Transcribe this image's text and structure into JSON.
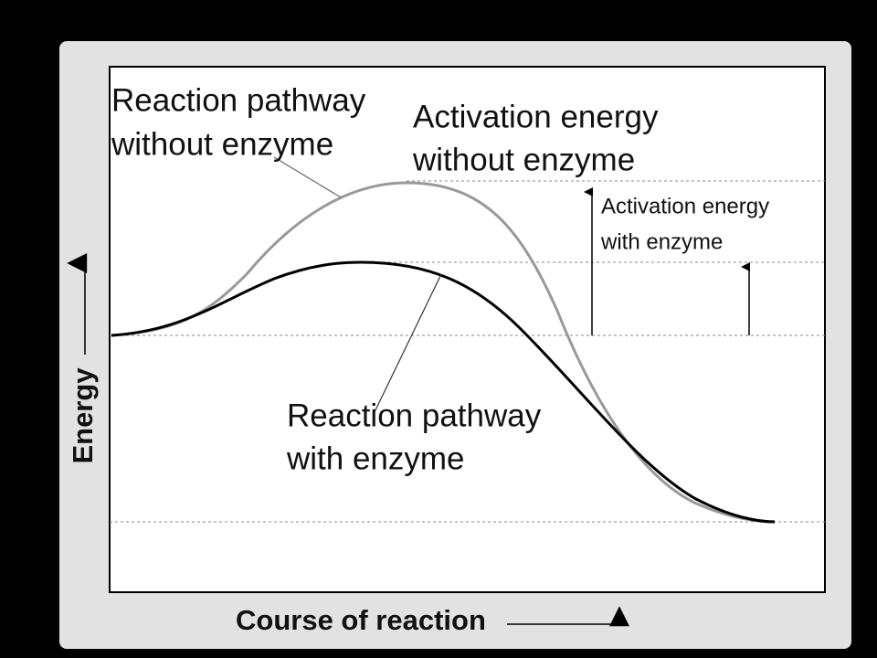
{
  "labels": {
    "pathway_without": [
      "Reaction pathway",
      "without enzyme"
    ],
    "activation_without": [
      "Activation energy",
      "without enzyme"
    ],
    "activation_with": [
      "Activation energy",
      "with enzyme"
    ],
    "pathway_with": [
      "Reaction pathway",
      "with enzyme"
    ]
  },
  "axes": {
    "y_label": "Energy",
    "x_label": "Course of reaction"
  }
}
